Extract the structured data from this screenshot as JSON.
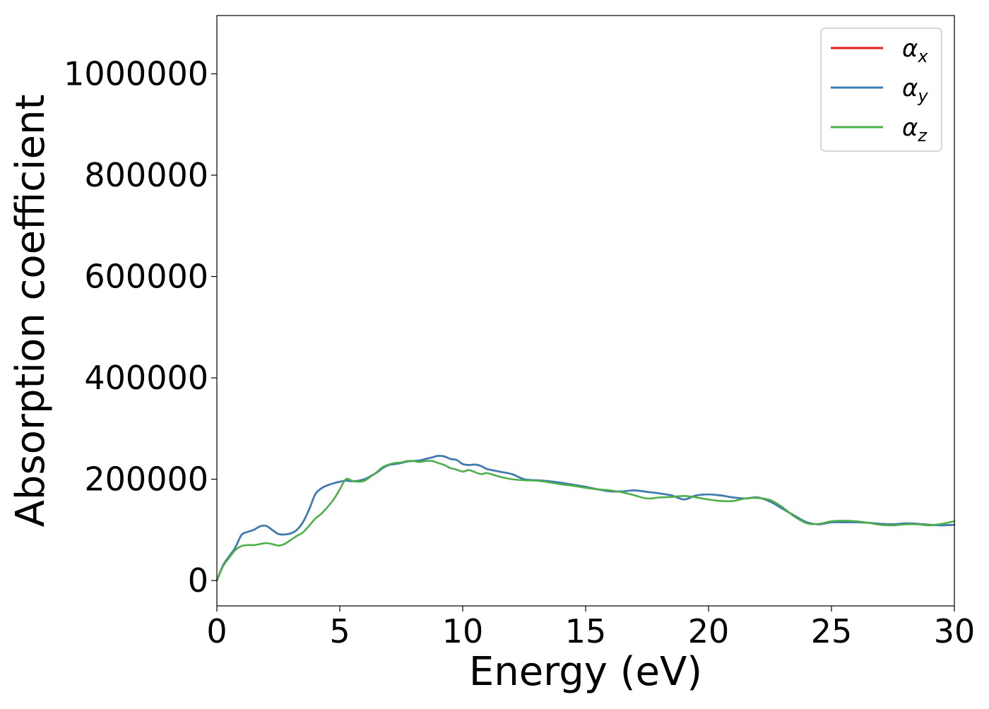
{
  "chart_data": {
    "type": "line",
    "title": "",
    "xlabel": "Energy (eV)",
    "ylabel": "Absorption coefficient",
    "xlim": [
      0,
      30
    ],
    "ylim": [
      -50000,
      1115000
    ],
    "xticks": [
      0,
      5,
      10,
      15,
      20,
      25,
      30
    ],
    "yticks": [
      0,
      200000,
      400000,
      600000,
      800000,
      1000000
    ],
    "xtick_labels": [
      "0",
      "5",
      "10",
      "15",
      "20",
      "25",
      "30"
    ],
    "ytick_labels": [
      "0",
      "200000",
      "400000",
      "600000",
      "800000",
      "1000000"
    ],
    "grid": false,
    "legend_position": "top-right",
    "series": [
      {
        "name": "αx",
        "symbol": "α",
        "subscript": "x",
        "color": "#e41a1c",
        "x": [
          0,
          0.25,
          0.5,
          0.75,
          1.0,
          1.25,
          1.5,
          1.75,
          2.0,
          2.25,
          2.5,
          2.75,
          3.0,
          3.25,
          3.5,
          3.75,
          4.0,
          4.25,
          4.5,
          4.75,
          5.0,
          5.25,
          5.5,
          5.75,
          6.0,
          6.25,
          6.5,
          6.75,
          7.0,
          7.25,
          7.5,
          7.75,
          8.0,
          8.25,
          8.5,
          8.75,
          9.0,
          9.25,
          9.5,
          9.75,
          10.0,
          10.25,
          10.5,
          10.75,
          11.0,
          11.5,
          12.0,
          12.5,
          13.0,
          13.5,
          14.0,
          14.5,
          15.0,
          15.5,
          16.0,
          16.5,
          17.0,
          17.5,
          18.0,
          18.5,
          19.0,
          19.5,
          20.0,
          20.5,
          21.0,
          21.5,
          22.0,
          22.5,
          23.0,
          23.5,
          24.0,
          24.5,
          25.0,
          25.5,
          26.0,
          26.5,
          27.0,
          27.5,
          28.0,
          28.5,
          29.0,
          29.5,
          30.0
        ],
        "y": [
          0,
          30000,
          48000,
          65000,
          90000,
          96000,
          100000,
          107000,
          108000,
          100000,
          92000,
          91000,
          93000,
          100000,
          115000,
          140000,
          170000,
          182000,
          188000,
          192000,
          195000,
          197000,
          196000,
          197000,
          200000,
          206000,
          213000,
          222000,
          228000,
          230000,
          232000,
          235000,
          236000,
          237000,
          240000,
          243000,
          246000,
          245000,
          240000,
          238000,
          230000,
          228000,
          229000,
          226000,
          220000,
          215000,
          210000,
          200000,
          198000,
          196000,
          193000,
          189000,
          185000,
          180000,
          176000,
          176000,
          178000,
          175000,
          172000,
          168000,
          160000,
          168000,
          170000,
          168000,
          164000,
          162000,
          164000,
          156000,
          142000,
          128000,
          115000,
          111000,
          115000,
          115000,
          115000,
          114000,
          112000,
          111000,
          113000,
          112000,
          110000,
          109000,
          110000
        ]
      },
      {
        "name": "αy",
        "symbol": "α",
        "subscript": "y",
        "color": "#377eb8",
        "x": [
          0,
          0.25,
          0.5,
          0.75,
          1.0,
          1.25,
          1.5,
          1.75,
          2.0,
          2.25,
          2.5,
          2.75,
          3.0,
          3.25,
          3.5,
          3.75,
          4.0,
          4.25,
          4.5,
          4.75,
          5.0,
          5.25,
          5.5,
          5.75,
          6.0,
          6.25,
          6.5,
          6.75,
          7.0,
          7.25,
          7.5,
          7.75,
          8.0,
          8.25,
          8.5,
          8.75,
          9.0,
          9.25,
          9.5,
          9.75,
          10.0,
          10.25,
          10.5,
          10.75,
          11.0,
          11.5,
          12.0,
          12.5,
          13.0,
          13.5,
          14.0,
          14.5,
          15.0,
          15.5,
          16.0,
          16.5,
          17.0,
          17.5,
          18.0,
          18.5,
          19.0,
          19.5,
          20.0,
          20.5,
          21.0,
          21.5,
          22.0,
          22.5,
          23.0,
          23.5,
          24.0,
          24.5,
          25.0,
          25.5,
          26.0,
          26.5,
          27.0,
          27.5,
          28.0,
          28.5,
          29.0,
          29.5,
          30.0
        ],
        "y": [
          0,
          30000,
          48000,
          65000,
          90000,
          96000,
          100000,
          107000,
          108000,
          100000,
          92000,
          91000,
          93000,
          100000,
          115000,
          140000,
          170000,
          182000,
          188000,
          192000,
          195000,
          197000,
          196000,
          197000,
          200000,
          206000,
          213000,
          222000,
          228000,
          230000,
          232000,
          235000,
          236000,
          237000,
          240000,
          243000,
          246000,
          245000,
          240000,
          238000,
          230000,
          228000,
          229000,
          226000,
          220000,
          215000,
          210000,
          200000,
          198000,
          196000,
          193000,
          189000,
          185000,
          180000,
          176000,
          176000,
          178000,
          175000,
          172000,
          168000,
          160000,
          168000,
          170000,
          168000,
          164000,
          162000,
          164000,
          156000,
          142000,
          128000,
          115000,
          111000,
          115000,
          115000,
          115000,
          114000,
          112000,
          111000,
          113000,
          112000,
          110000,
          109000,
          110000
        ]
      },
      {
        "name": "αz",
        "symbol": "α",
        "subscript": "z",
        "color": "#4daf4a",
        "x": [
          0,
          0.25,
          0.5,
          0.75,
          1.0,
          1.25,
          1.5,
          1.75,
          2.0,
          2.25,
          2.5,
          2.75,
          3.0,
          3.25,
          3.5,
          3.75,
          4.0,
          4.25,
          4.5,
          4.75,
          5.0,
          5.25,
          5.5,
          5.75,
          6.0,
          6.25,
          6.5,
          6.75,
          7.0,
          7.25,
          7.5,
          7.75,
          8.0,
          8.25,
          8.5,
          8.75,
          9.0,
          9.25,
          9.5,
          9.75,
          10.0,
          10.25,
          10.5,
          10.75,
          11.0,
          11.5,
          12.0,
          12.5,
          13.0,
          13.5,
          14.0,
          14.5,
          15.0,
          15.5,
          16.0,
          16.5,
          17.0,
          17.5,
          18.0,
          18.5,
          19.0,
          19.5,
          20.0,
          20.5,
          21.0,
          21.5,
          22.0,
          22.5,
          23.0,
          23.5,
          24.0,
          24.5,
          25.0,
          25.5,
          26.0,
          26.5,
          27.0,
          27.5,
          28.0,
          28.5,
          29.0,
          29.5,
          30.0
        ],
        "y": [
          0,
          28000,
          45000,
          60000,
          68000,
          70000,
          70000,
          72000,
          74000,
          72000,
          69000,
          72000,
          80000,
          88000,
          95000,
          108000,
          122000,
          132000,
          145000,
          160000,
          180000,
          200000,
          197000,
          195000,
          197000,
          205000,
          214000,
          224000,
          229000,
          232000,
          233000,
          236000,
          236000,
          234000,
          236000,
          236000,
          232000,
          228000,
          222000,
          219000,
          215000,
          218000,
          214000,
          210000,
          212000,
          205000,
          200000,
          198000,
          197000,
          194000,
          190000,
          187000,
          183000,
          180000,
          178000,
          174000,
          168000,
          162000,
          164000,
          165000,
          167000,
          164000,
          160000,
          157000,
          157000,
          162000,
          163000,
          159000,
          145000,
          126000,
          113000,
          112000,
          117000,
          118000,
          117000,
          114000,
          110000,
          109000,
          111000,
          111000,
          109000,
          112000,
          117000
        ]
      }
    ]
  }
}
